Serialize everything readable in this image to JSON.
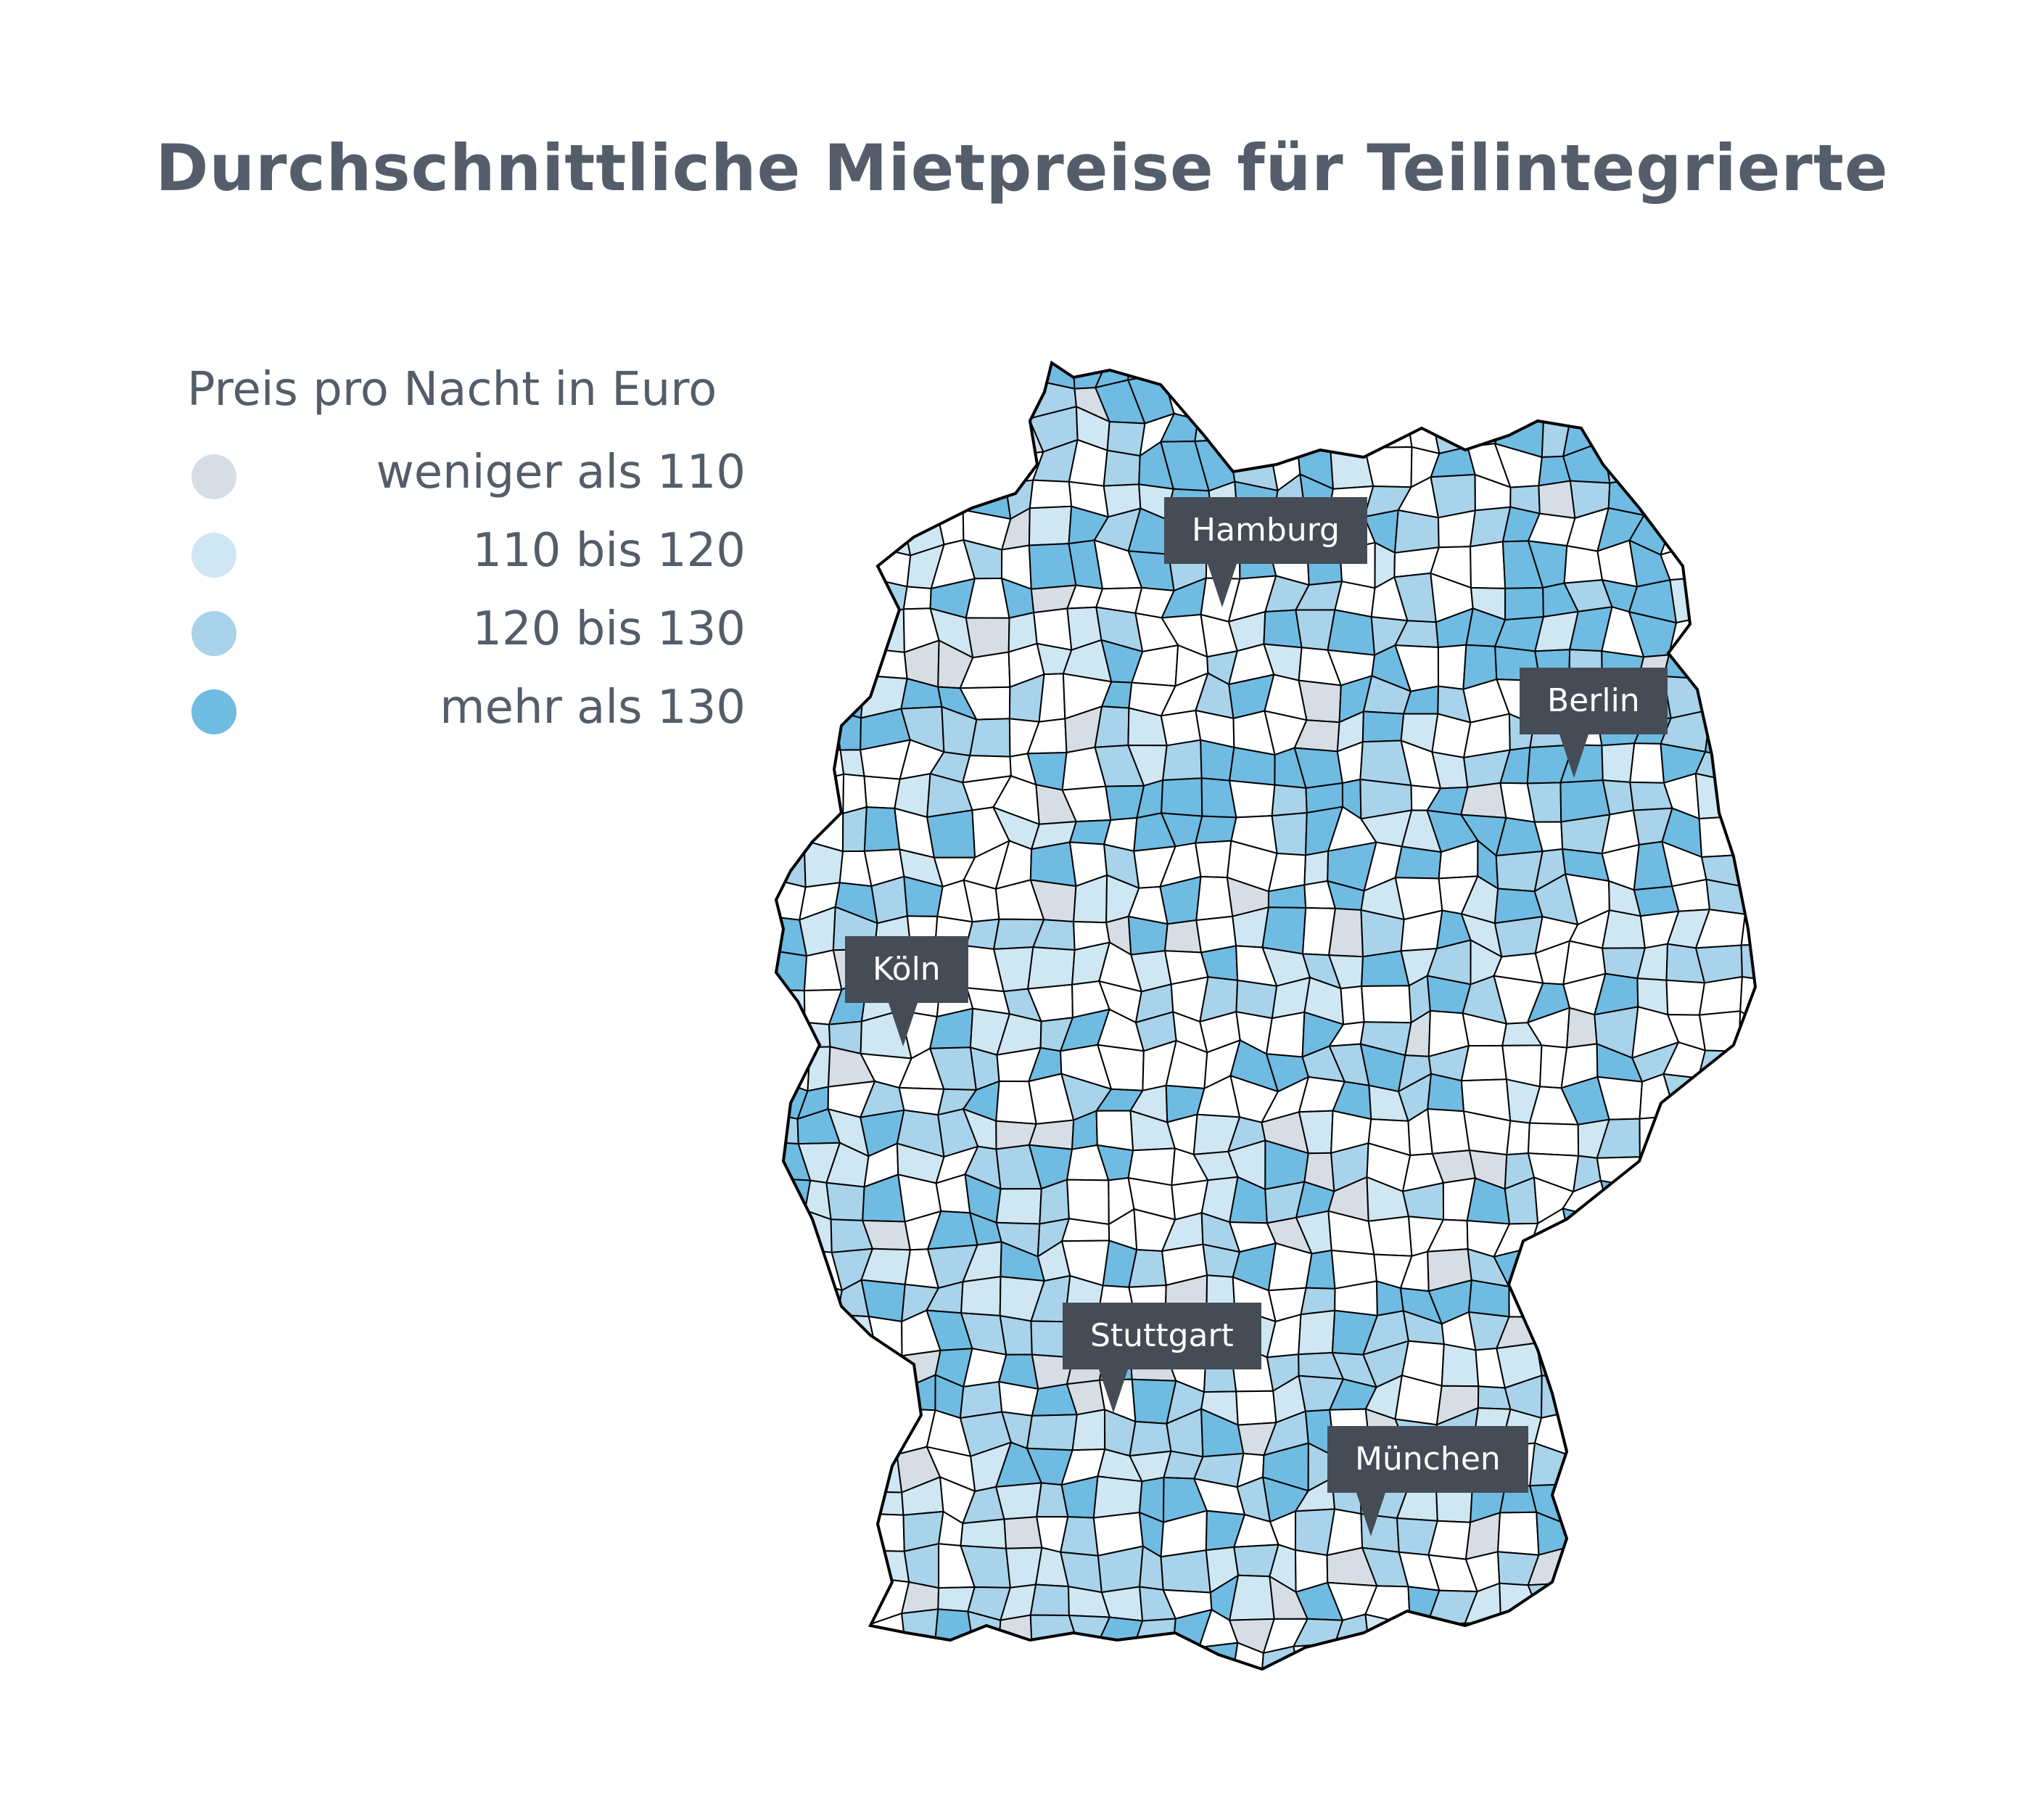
{
  "title": "Durchschnittliche Mietpreise für Teilintegrierte",
  "legend": {
    "title": "Preis pro Nacht in Euro",
    "items": [
      {
        "label": "weniger als 110",
        "color": "#d7dde5"
      },
      {
        "label": "110 bis 120",
        "color": "#cfe6f3"
      },
      {
        "label": "120 bis 130",
        "color": "#a8d3ea"
      },
      {
        "label": "mehr als 130",
        "color": "#6fbbe2"
      }
    ]
  },
  "cities": [
    {
      "name": "Hamburg"
    },
    {
      "name": "Berlin"
    },
    {
      "name": "Köln"
    },
    {
      "name": "Stuttgart"
    },
    {
      "name": "München"
    }
  ],
  "colors": {
    "outline": "#000000",
    "none": "#ffffff",
    "callout_bg": "#454c55",
    "callout_text": "#ffffff"
  }
}
